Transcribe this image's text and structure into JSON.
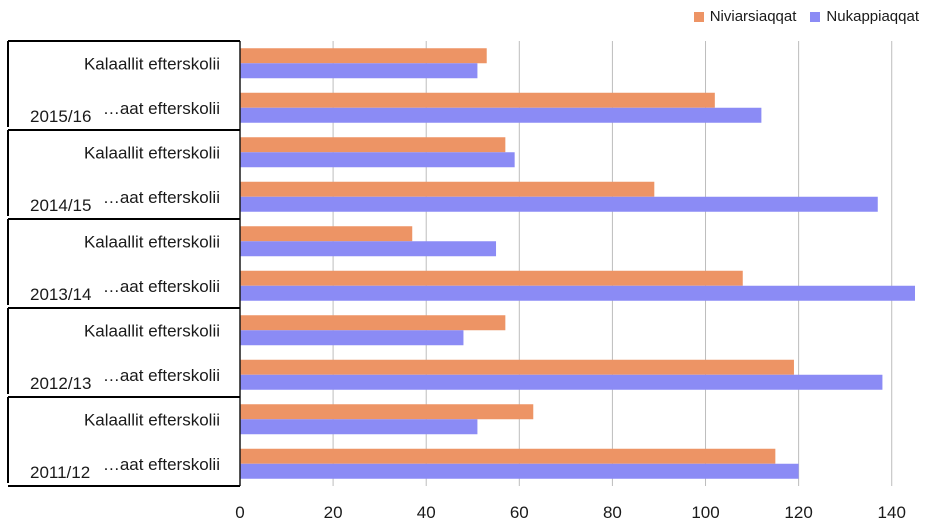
{
  "chart_data": {
    "type": "bar",
    "orientation": "horizontal",
    "xlim": [
      0,
      145
    ],
    "xticks": [
      0,
      20,
      40,
      60,
      80,
      100,
      120,
      140
    ],
    "grid": true,
    "legend_position": "top-right",
    "groups": [
      {
        "year": "2015/16",
        "rows": [
          "Kalaallit efterskolii",
          "…aat efterskolii"
        ]
      },
      {
        "year": "2014/15",
        "rows": [
          "Kalaallit efterskolii",
          "…aat efterskolii"
        ]
      },
      {
        "year": "2013/14",
        "rows": [
          "Kalaallit efterskolii",
          "…aat efterskolii"
        ]
      },
      {
        "year": "2012/13",
        "rows": [
          "Kalaallit efterskolii",
          "…aat efterskolii"
        ]
      },
      {
        "year": "2011/12",
        "rows": [
          "Kalaallit efterskolii",
          "…aat efterskolii"
        ]
      }
    ],
    "series": [
      {
        "name": "Niviarsiaqqat",
        "color": "#ED9465",
        "values": [
          53,
          102,
          57,
          89,
          37,
          108,
          57,
          119,
          63,
          115
        ]
      },
      {
        "name": "Nukappiaqqat",
        "color": "#8B8BF5",
        "values": [
          51,
          112,
          59,
          137,
          55,
          145,
          48,
          138,
          51,
          120
        ]
      }
    ]
  }
}
